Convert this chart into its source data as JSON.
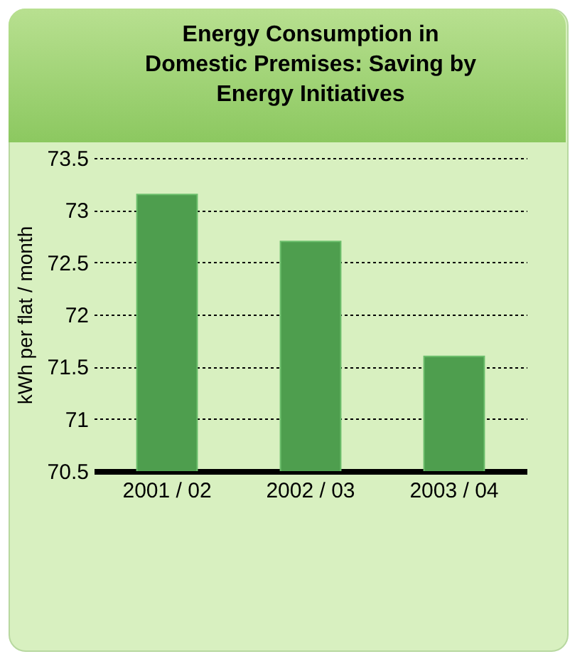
{
  "chart_data": {
    "type": "bar",
    "title": "Energy Consumption in Domestic Premises: Saving by Energy Initiatives",
    "ylabel": "kWh per flat / month",
    "categories": [
      "2001 / 02",
      "2002 / 03",
      "2003 / 04"
    ],
    "values": [
      73.15,
      72.7,
      71.6
    ],
    "color": "#4e9e4e",
    "ylim": [
      70.5,
      73.5
    ],
    "yticks": [
      70.5,
      71,
      71.5,
      72,
      72.5,
      73,
      73.5
    ],
    "grid": "y"
  }
}
